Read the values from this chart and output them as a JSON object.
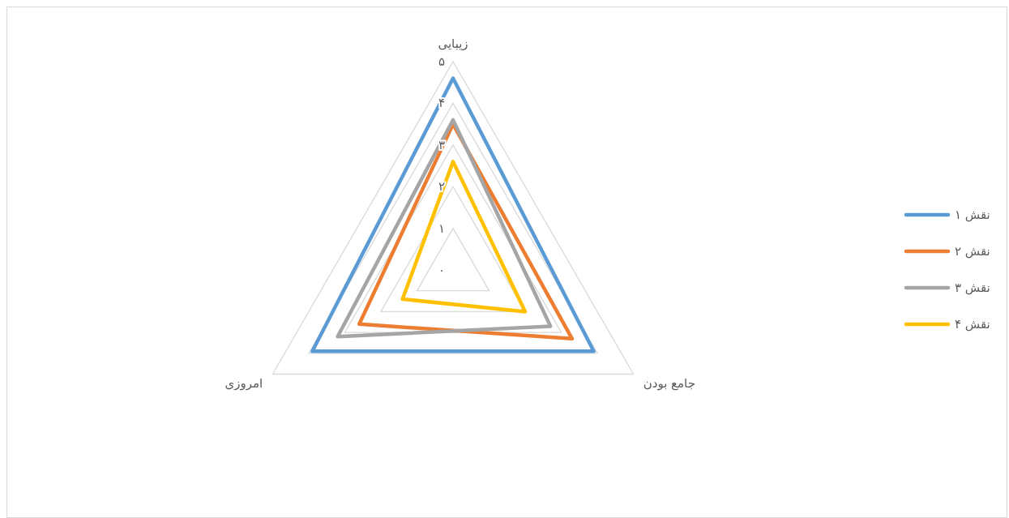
{
  "chart_data": {
    "type": "radar",
    "categories": [
      "زیبایی",
      "جامع بودن",
      "امروزی"
    ],
    "ylim": [
      0,
      5
    ],
    "yticks": [
      {
        "value": 0,
        "label": "۰"
      },
      {
        "value": 1,
        "label": "۱"
      },
      {
        "value": 2,
        "label": "۲"
      },
      {
        "value": 3,
        "label": "۳"
      },
      {
        "value": 4,
        "label": "۴"
      },
      {
        "value": 5,
        "label": "۵"
      }
    ],
    "grid": true,
    "legend": "right",
    "marker": "none",
    "line_style": "solid",
    "series": [
      {
        "name": "نقش ۱",
        "color": "#5b9bd5",
        "values": [
          4.6,
          3.9,
          3.9
        ]
      },
      {
        "name": "نقش ۲",
        "color": "#ed7d31",
        "values": [
          3.5,
          3.3,
          2.6
        ]
      },
      {
        "name": "نقش ۳",
        "color": "#a5a5a5",
        "values": [
          3.6,
          2.7,
          3.2
        ]
      },
      {
        "name": "نقش ۴",
        "color": "#ffc000",
        "values": [
          2.6,
          2.0,
          1.4
        ]
      }
    ]
  }
}
